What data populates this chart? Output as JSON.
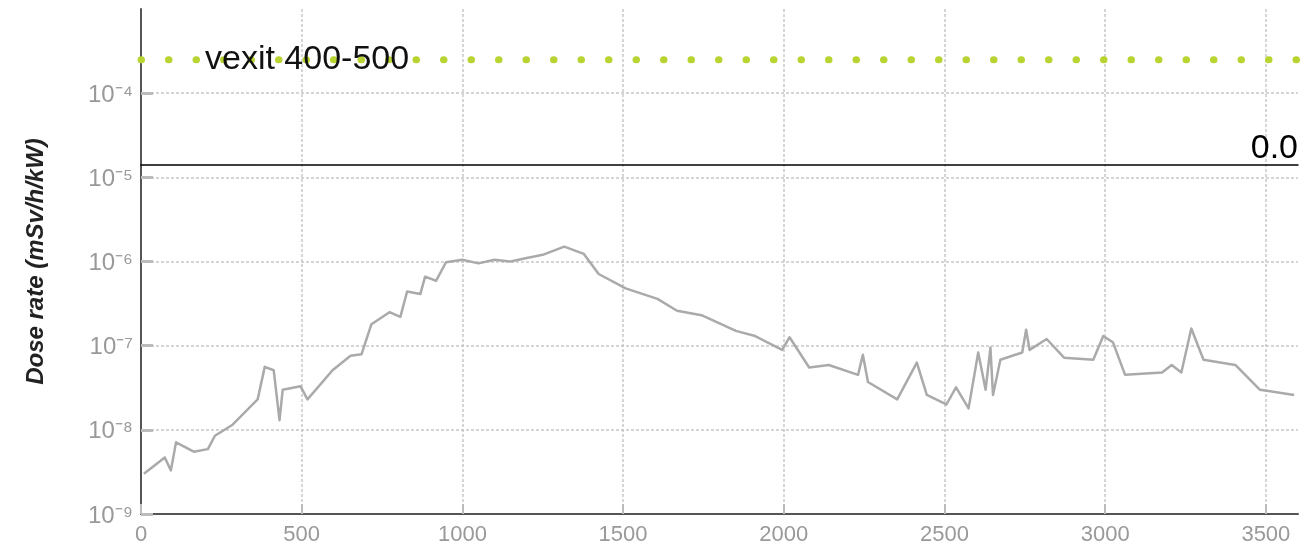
{
  "chart_data": {
    "type": "line",
    "ylabel": "Dose rate (mSv/h/kW)",
    "annotations": [
      "vexit 400-500"
    ],
    "x": [
      9,
      74,
      93,
      109,
      164,
      208,
      230,
      285,
      363,
      385,
      413,
      431,
      441,
      496,
      518,
      596,
      652,
      686,
      717,
      773,
      807,
      828,
      869,
      884,
      918,
      949,
      1000,
      1050,
      1100,
      1150,
      1200,
      1250,
      1317,
      1378,
      1424,
      1508,
      1607,
      1668,
      1744,
      1851,
      1911,
      1995,
      2018,
      2079,
      2140,
      2231,
      2246,
      2262,
      2353,
      2414,
      2445,
      2506,
      2536,
      2575,
      2605,
      2628,
      2643,
      2651,
      2674,
      2742,
      2754,
      2765,
      2818,
      2872,
      2963,
      2994,
      3024,
      3062,
      3177,
      3207,
      3237,
      3268,
      3306,
      3405,
      3481,
      3588
    ],
    "series": [
      {
        "color": "#aaaaaa",
        "values": [
          3e-09,
          4.7e-09,
          3.3e-09,
          7.1e-09,
          5.5e-09,
          5.9e-09,
          8.5e-09,
          1.15e-08,
          2.3e-08,
          5.6e-08,
          5.1e-08,
          1.3e-08,
          3e-08,
          3.3e-08,
          2.3e-08,
          5.1e-08,
          7.6e-08,
          7.9e-08,
          1.8e-07,
          2.5e-07,
          2.2e-07,
          4.4e-07,
          4.1e-07,
          6.6e-07,
          5.9e-07,
          9.8e-07,
          1.05e-06,
          9.5e-07,
          1.05e-06,
          1e-06,
          1.1e-06,
          1.2e-06,
          1.5e-06,
          1.23e-06,
          7.1e-07,
          4.8e-07,
          3.6e-07,
          2.6e-07,
          2.3e-07,
          1.5e-07,
          1.3e-07,
          8.9e-08,
          1.26e-07,
          5.5e-08,
          5.9e-08,
          4.5e-08,
          7.8e-08,
          3.7e-08,
          2.3e-08,
          6.3e-08,
          2.6e-08,
          2e-08,
          3.2e-08,
          1.8e-08,
          8.3e-08,
          3e-08,
          9.5e-08,
          2.6e-08,
          6.8e-08,
          8.3e-08,
          1.55e-07,
          8.9e-08,
          1.2e-07,
          7.2e-08,
          6.8e-08,
          1.3e-07,
          1.1e-07,
          4.5e-08,
          4.8e-08,
          5.9e-08,
          4.8e-08,
          1.6e-07,
          6.8e-08,
          5.9e-08,
          3e-08,
          2.6e-08
        ]
      }
    ],
    "xlim": [
      0,
      3600
    ],
    "xticks": [
      0,
      500,
      1000,
      1500,
      2000,
      2500,
      3000,
      3500
    ],
    "ylim": [
      1e-09,
      0.001
    ],
    "yticks": [
      {
        "value": 1e-09,
        "label": "10⁻⁹"
      },
      {
        "value": 1e-08,
        "label": "10⁻⁸"
      },
      {
        "value": 1e-07,
        "label": "10⁻⁷"
      },
      {
        "value": 1e-06,
        "label": "10⁻⁶"
      },
      {
        "value": 1e-05,
        "label": "10⁻⁵"
      },
      {
        "value": 0.0001,
        "label": "10⁻⁴"
      }
    ],
    "log": "y",
    "grid": true,
    "marker": "none",
    "line_style": "solid",
    "ref_lines": [
      {
        "axis": "y",
        "value": 0.00025,
        "label": null,
        "color": "#b8d432",
        "line_style": "dotted"
      },
      {
        "axis": "y",
        "value": 1.4e-05,
        "label": "0.0",
        "color": "#000000",
        "line_style": "solid"
      }
    ]
  }
}
